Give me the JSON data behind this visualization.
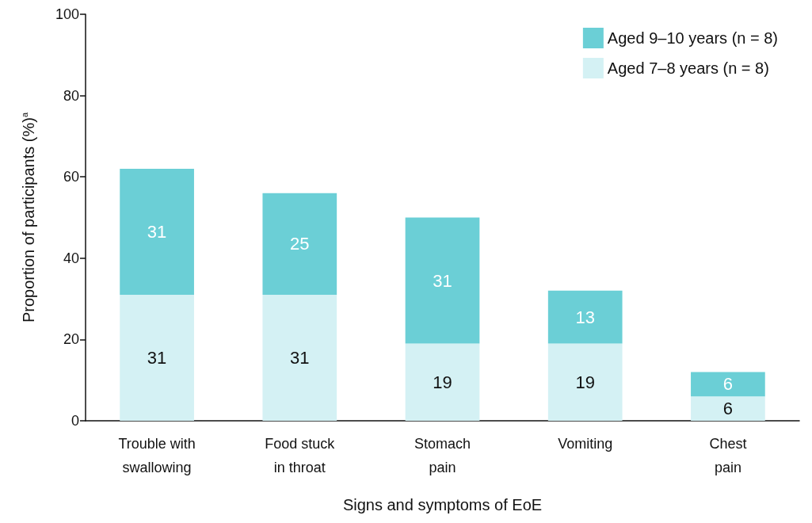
{
  "chart_data": {
    "type": "bar",
    "stacked": true,
    "xlabel": "Signs and symptoms of EoE",
    "ylabel": "Proportion of participants (%)$^{a}$",
    "categories": [
      "Trouble with\nswallowing",
      "Food stuck\nin throat",
      "Stomach\npain",
      "Vomiting",
      "Chest\npain"
    ],
    "series": [
      {
        "name": "Aged 7–8 years (n = 8)",
        "color": "#d4f1f4",
        "values": [
          31,
          31,
          19,
          19,
          6
        ]
      },
      {
        "name": "Aged 9–10 years (n = 8)",
        "color": "#6bcfd6",
        "values": [
          31,
          25,
          31,
          13,
          6
        ]
      }
    ],
    "ylim": [
      0,
      100
    ],
    "yticks": [
      0,
      20,
      40,
      60,
      80,
      100
    ],
    "grid": false,
    "legend": "top right",
    "data_labels": true
  }
}
